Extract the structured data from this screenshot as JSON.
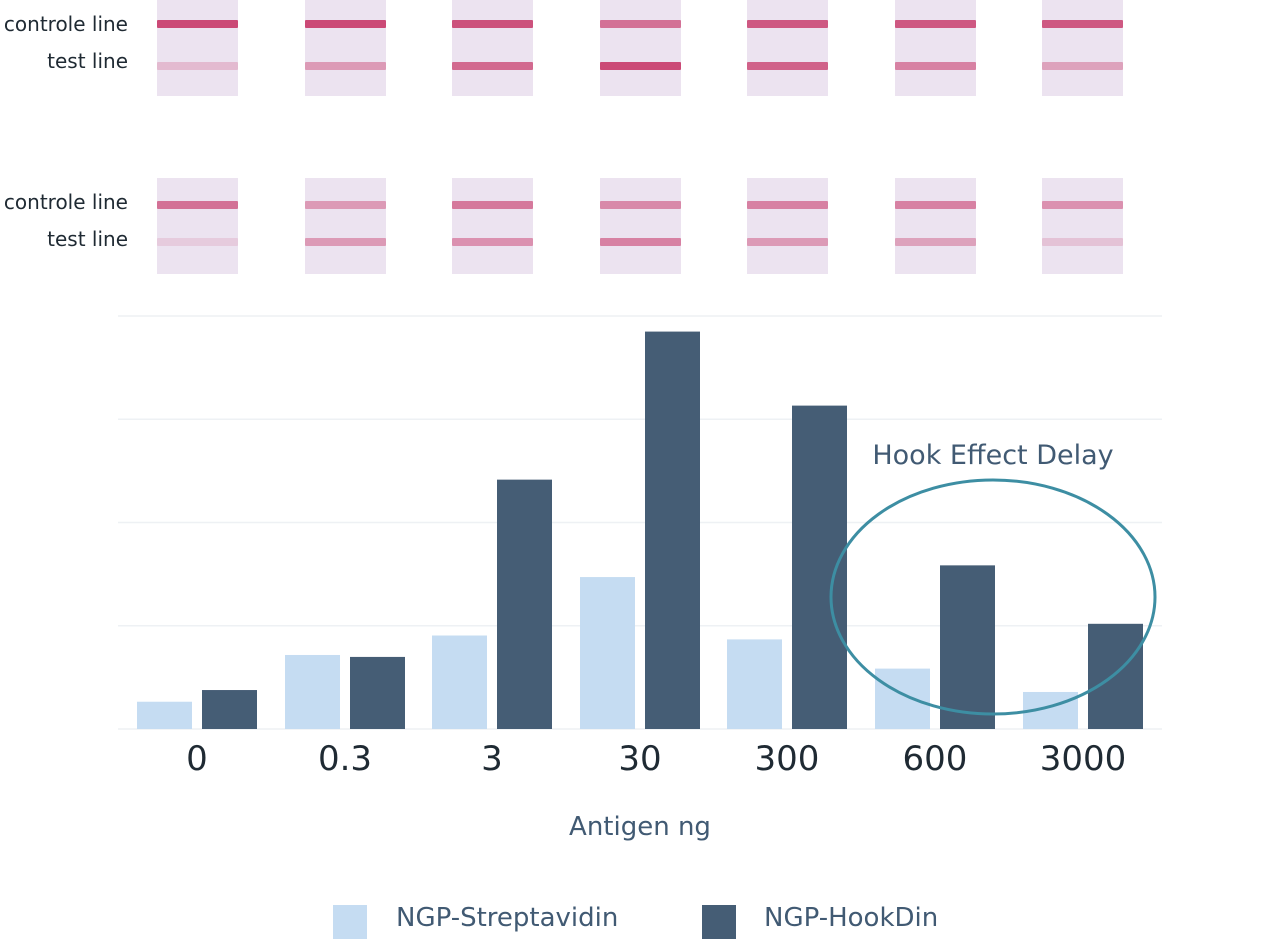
{
  "strip_rows": [
    {
      "labels": {
        "control": "controle line",
        "test": "test line"
      },
      "strips": [
        {
          "control": 0.95,
          "test": 0.25
        },
        {
          "control": 0.95,
          "test": 0.45
        },
        {
          "control": 0.9,
          "test": 0.75
        },
        {
          "control": 0.7,
          "test": 0.95
        },
        {
          "control": 0.85,
          "test": 0.8
        },
        {
          "control": 0.85,
          "test": 0.6
        },
        {
          "control": 0.85,
          "test": 0.4
        }
      ]
    },
    {
      "labels": {
        "control": "controle line",
        "test": "test line"
      },
      "strips": [
        {
          "control": 0.7,
          "test": 0.15
        },
        {
          "control": 0.45,
          "test": 0.45
        },
        {
          "control": 0.65,
          "test": 0.5
        },
        {
          "control": 0.55,
          "test": 0.6
        },
        {
          "control": 0.6,
          "test": 0.45
        },
        {
          "control": 0.6,
          "test": 0.4
        },
        {
          "control": 0.5,
          "test": 0.2
        }
      ]
    }
  ],
  "chart_data": {
    "type": "bar",
    "categories": [
      "0",
      "0.3",
      "3",
      "30",
      "300",
      "600",
      "3000"
    ],
    "series": [
      {
        "name": "NGP-Streptavidin",
        "color": "#c5dcf2",
        "values": [
          0.7,
          1.9,
          2.4,
          3.9,
          2.3,
          1.55,
          0.95
        ]
      },
      {
        "name": "NGP-HookDin",
        "color": "#455d75",
        "values": [
          1.0,
          1.85,
          6.4,
          10.2,
          8.3,
          4.2,
          2.7
        ]
      }
    ],
    "xlabel": "Antigen ng",
    "ylabel": "",
    "ylim": [
      0,
      10.6
    ],
    "grid": true,
    "annotation": {
      "text": "Hook Effect Delay",
      "highlight": [
        "600",
        "3000"
      ],
      "color": "#3d8ea3"
    },
    "legend_position": "bottom"
  }
}
